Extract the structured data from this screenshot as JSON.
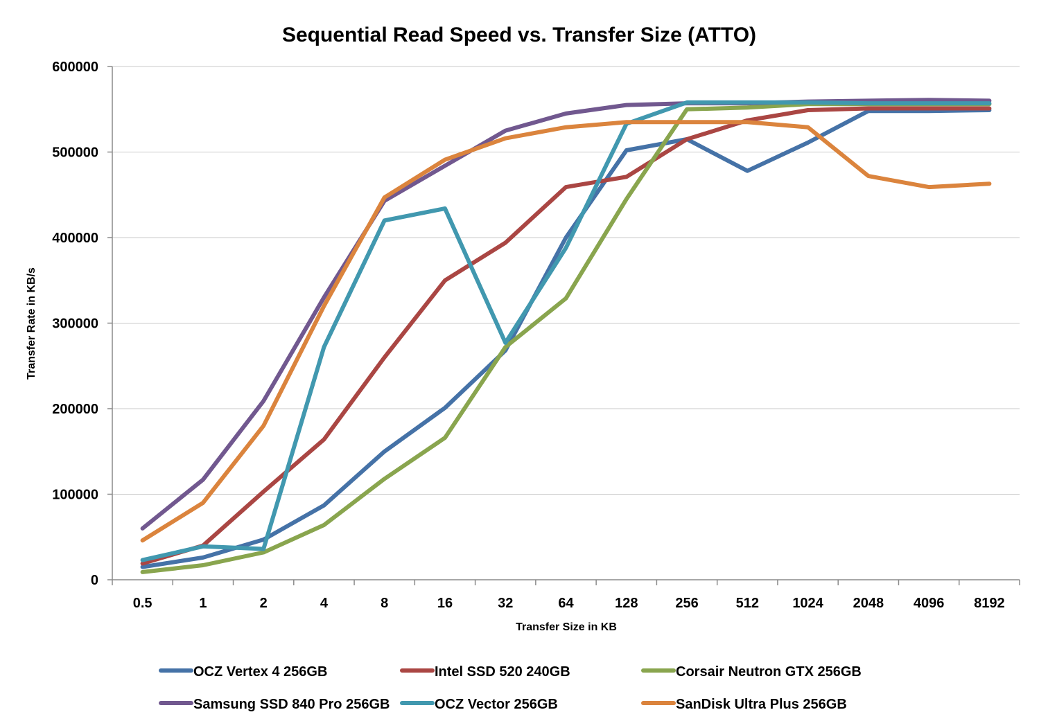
{
  "chart_data": {
    "type": "line",
    "title": "Sequential Read Speed vs. Transfer Size (ATTO)",
    "xlabel": "Transfer Size in KB",
    "ylabel": "Transfer Rate in KB/s",
    "ylim": [
      0,
      600000
    ],
    "yticks": [
      "0",
      "100000",
      "200000",
      "300000",
      "400000",
      "500000",
      "600000"
    ],
    "grid": true,
    "legend_position": "bottom",
    "categories": [
      "0.5",
      "1",
      "2",
      "4",
      "8",
      "16",
      "32",
      "64",
      "128",
      "256",
      "512",
      "1024",
      "2048",
      "4096",
      "8192"
    ],
    "series": [
      {
        "name": "OCZ Vertex 4 256GB",
        "color": "#4572a7",
        "values": [
          15000,
          26000,
          47000,
          87000,
          150000,
          201000,
          268000,
          400000,
          502000,
          515000,
          478000,
          511000,
          548000,
          548000,
          549000
        ]
      },
      {
        "name": "Intel SSD 520 240GB",
        "color": "#aa4643",
        "values": [
          19000,
          40000,
          103000,
          164000,
          260000,
          350000,
          394000,
          459000,
          471000,
          515000,
          537000,
          549000,
          551000,
          551000,
          551000
        ]
      },
      {
        "name": "Corsair Neutron GTX 256GB",
        "color": "#89a54e",
        "values": [
          9000,
          17000,
          32000,
          64000,
          118000,
          166000,
          272000,
          329000,
          445000,
          550000,
          552000,
          556000,
          556000,
          556000,
          556000
        ]
      },
      {
        "name": "Samsung SSD 840 Pro 256GB",
        "color": "#71588f",
        "values": [
          60000,
          117000,
          209000,
          330000,
          443000,
          484000,
          525000,
          545000,
          555000,
          557000,
          557000,
          559000,
          560000,
          561000,
          560000
        ]
      },
      {
        "name": "OCZ Vector 256GB",
        "color": "#4198af",
        "values": [
          23000,
          39000,
          36000,
          272000,
          420000,
          434000,
          277000,
          388000,
          533000,
          558000,
          558000,
          558000,
          557000,
          557000,
          557000
        ]
      },
      {
        "name": "SanDisk Ultra Plus 256GB",
        "color": "#db843d",
        "values": [
          46000,
          90000,
          180000,
          320000,
          447000,
          491000,
          516000,
          529000,
          535000,
          535000,
          535000,
          529000,
          472000,
          459000,
          463000
        ]
      }
    ]
  }
}
